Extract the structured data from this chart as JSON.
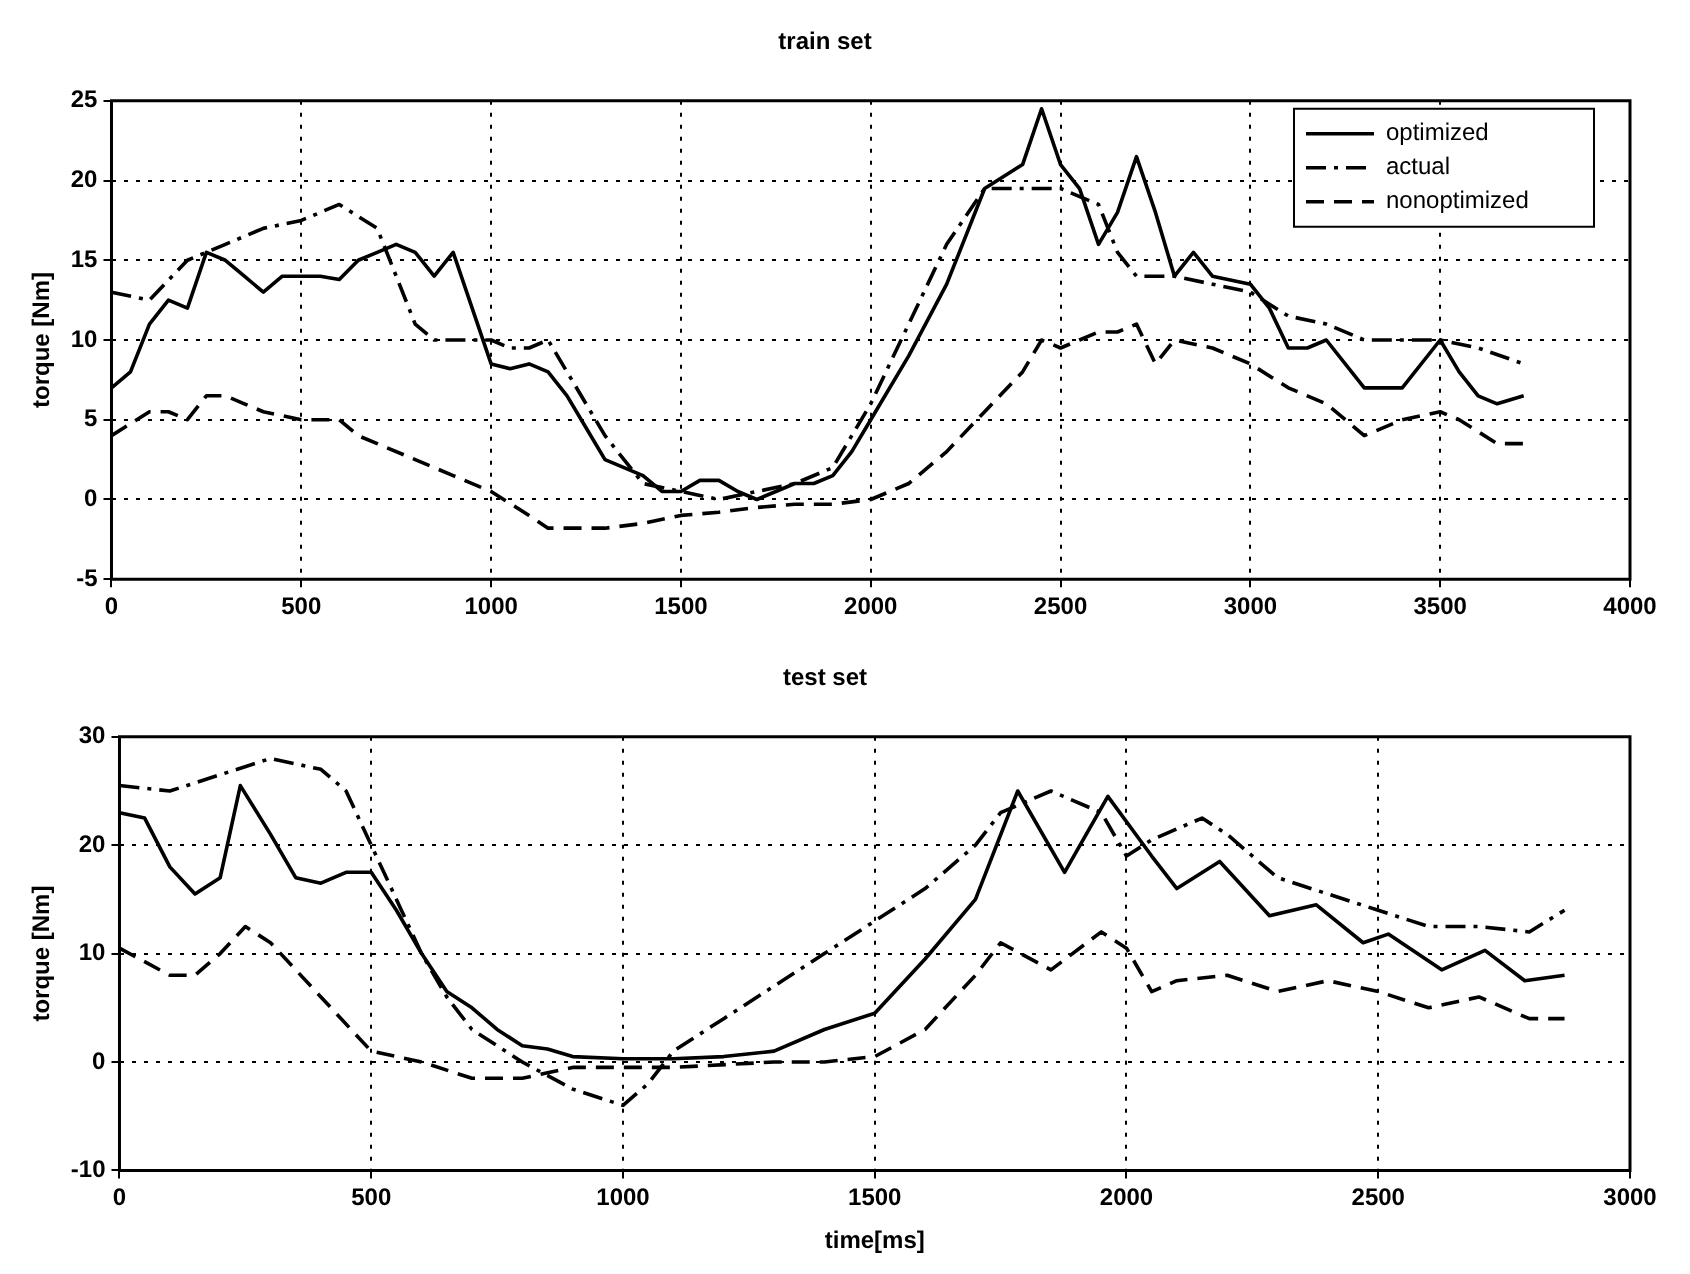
{
  "chart_data": [
    {
      "type": "line",
      "title": "train set",
      "ylabel": "torque [Nm]",
      "xlim": [
        0,
        4000
      ],
      "xticks": [
        0,
        500,
        1000,
        1500,
        2000,
        2500,
        3000,
        3500,
        4000
      ],
      "ylim": [
        -5,
        25
      ],
      "yticks": [
        -5,
        0,
        5,
        10,
        15,
        20,
        25
      ],
      "grid": true,
      "legend": "top right",
      "marker": "none",
      "series": [
        {
          "name": "optimized",
          "color": "#000000",
          "line_style": "solid",
          "x": [
            0,
            50,
            100,
            150,
            200,
            250,
            300,
            350,
            400,
            450,
            500,
            550,
            600,
            650,
            700,
            750,
            800,
            850,
            900,
            950,
            1000,
            1050,
            1100,
            1150,
            1200,
            1250,
            1300,
            1350,
            1400,
            1450,
            1500,
            1550,
            1600,
            1650,
            1700,
            1750,
            1800,
            1850,
            1900,
            1950,
            2000,
            2100,
            2200,
            2300,
            2400,
            2450,
            2500,
            2550,
            2600,
            2650,
            2700,
            2750,
            2800,
            2850,
            2900,
            3000,
            3050,
            3100,
            3150,
            3200,
            3300,
            3400,
            3500,
            3550,
            3600,
            3650,
            3720
          ],
          "values": [
            7,
            8,
            11,
            12.5,
            12,
            15.5,
            15,
            14,
            13,
            14,
            14,
            14,
            13.8,
            15,
            15.5,
            16,
            15.5,
            14,
            15.5,
            12,
            8.5,
            8.2,
            8.5,
            8,
            6.5,
            4.5,
            2.5,
            2,
            1.5,
            0.5,
            0.5,
            1.2,
            1.2,
            0.5,
            0,
            0.5,
            1,
            1,
            1.5,
            3,
            5,
            9,
            13.5,
            19.5,
            21,
            24.5,
            21,
            19.5,
            16,
            18,
            21.5,
            18,
            14,
            15.5,
            14,
            13.5,
            12,
            9.5,
            9.5,
            10,
            7,
            7,
            10,
            8,
            6.5,
            6,
            6.5
          ]
        },
        {
          "name": "actual",
          "color": "#000000",
          "line_style": "dashdot",
          "x": [
            0,
            100,
            200,
            300,
            400,
            500,
            600,
            700,
            750,
            800,
            850,
            1000,
            1050,
            1100,
            1150,
            1200,
            1300,
            1400,
            1500,
            1600,
            1700,
            1800,
            1900,
            2000,
            2100,
            2200,
            2300,
            2400,
            2500,
            2600,
            2650,
            2700,
            2800,
            2900,
            3000,
            3100,
            3200,
            3300,
            3400,
            3500,
            3600,
            3720
          ],
          "values": [
            13,
            12.5,
            15,
            16,
            17,
            17.5,
            18.5,
            17,
            14,
            11,
            10,
            10,
            9.5,
            9.5,
            10,
            8,
            4,
            1,
            0.5,
            0,
            0.5,
            1,
            2,
            6,
            11,
            16,
            19.5,
            19.5,
            19.5,
            18.5,
            15.5,
            14,
            14,
            13.5,
            13,
            11.5,
            11,
            10,
            10,
            10,
            9.5,
            8.5
          ]
        },
        {
          "name": "nonoptimized",
          "color": "#000000",
          "line_style": "dashed",
          "x": [
            0,
            100,
            150,
            200,
            250,
            300,
            350,
            400,
            500,
            600,
            650,
            700,
            800,
            900,
            1000,
            1100,
            1150,
            1300,
            1400,
            1500,
            1600,
            1700,
            1800,
            1900,
            2000,
            2100,
            2200,
            2300,
            2400,
            2450,
            2500,
            2550,
            2600,
            2650,
            2700,
            2750,
            2800,
            2900,
            3000,
            3100,
            3200,
            3300,
            3400,
            3500,
            3550,
            3650,
            3720
          ],
          "values": [
            4,
            5.5,
            5.5,
            5,
            6.5,
            6.5,
            6,
            5.5,
            5,
            5,
            4,
            3.5,
            2.5,
            1.5,
            0.5,
            -1,
            -1.8,
            -1.8,
            -1.5,
            -1,
            -0.8,
            -0.5,
            -0.3,
            -0.3,
            0,
            1,
            3,
            5.5,
            8,
            10,
            9.5,
            10,
            10.5,
            10.5,
            11,
            8.5,
            10,
            9.5,
            8.5,
            7,
            6,
            4,
            5,
            5.5,
            5,
            3.5,
            3.5
          ]
        }
      ]
    },
    {
      "type": "line",
      "title": "test set",
      "xlabel": "time[ms]",
      "ylabel": "torque [Nm]",
      "xlim": [
        0,
        3000
      ],
      "xticks": [
        0,
        500,
        1000,
        1500,
        2000,
        2500,
        3000
      ],
      "ylim": [
        -10,
        30
      ],
      "yticks": [
        -10,
        0,
        10,
        20,
        30
      ],
      "grid": true,
      "marker": "none",
      "series": [
        {
          "color": "#000000",
          "line_style": "solid",
          "x": [
            0,
            50,
            100,
            150,
            200,
            240,
            300,
            350,
            400,
            450,
            500,
            550,
            600,
            650,
            700,
            750,
            800,
            850,
            900,
            1000,
            1100,
            1200,
            1300,
            1400,
            1500,
            1600,
            1700,
            1784,
            1877,
            1963,
            2050,
            2100,
            2185,
            2284,
            2377,
            2470,
            2520,
            2626,
            2712,
            2791,
            2870
          ],
          "values": [
            23,
            22.5,
            18,
            15.5,
            17,
            25.5,
            21,
            17,
            16.5,
            17.5,
            17.5,
            14,
            10,
            6.5,
            5,
            3,
            1.5,
            1.2,
            0.5,
            0.3,
            0.3,
            0.5,
            1,
            3,
            4.5,
            9.5,
            15,
            25,
            17.5,
            24.5,
            19,
            16,
            18.5,
            13.5,
            14.5,
            11,
            11.8,
            8.5,
            10.3,
            7.5,
            8
          ]
        },
        {
          "color": "#000000",
          "line_style": "dashdot",
          "x": [
            0,
            100,
            200,
            300,
            400,
            450,
            500,
            550,
            600,
            650,
            700,
            800,
            900,
            1000,
            1050,
            1100,
            1200,
            1300,
            1400,
            1500,
            1600,
            1700,
            1750,
            1850,
            1950,
            2000,
            2050,
            2150,
            2200,
            2300,
            2400,
            2500,
            2600,
            2700,
            2800,
            2870
          ],
          "values": [
            25.5,
            25,
            26.5,
            28,
            27,
            25,
            20,
            15,
            10,
            6,
            3,
            0,
            -2.5,
            -4,
            -2,
            1,
            4,
            7,
            10,
            13,
            16,
            20,
            23,
            25,
            23,
            19,
            20.5,
            22.5,
            21,
            17,
            15.5,
            14,
            12.5,
            12.5,
            12,
            14
          ]
        },
        {
          "color": "#000000",
          "line_style": "dashed",
          "x": [
            0,
            100,
            150,
            200,
            250,
            300,
            400,
            500,
            600,
            700,
            800,
            900,
            1000,
            1100,
            1300,
            1400,
            1500,
            1600,
            1700,
            1750,
            1850,
            1950,
            2000,
            2050,
            2100,
            2200,
            2300,
            2400,
            2500,
            2600,
            2700,
            2800,
            2870
          ],
          "values": [
            10.5,
            8,
            8,
            10,
            12.5,
            11,
            6,
            1,
            0,
            -1.5,
            -1.5,
            -0.5,
            -0.5,
            -0.5,
            0,
            0,
            0.5,
            3,
            8,
            11,
            8.5,
            12,
            10.5,
            6.5,
            7.5,
            8,
            6.5,
            7.5,
            6.5,
            5,
            6,
            4,
            4
          ]
        }
      ]
    }
  ]
}
